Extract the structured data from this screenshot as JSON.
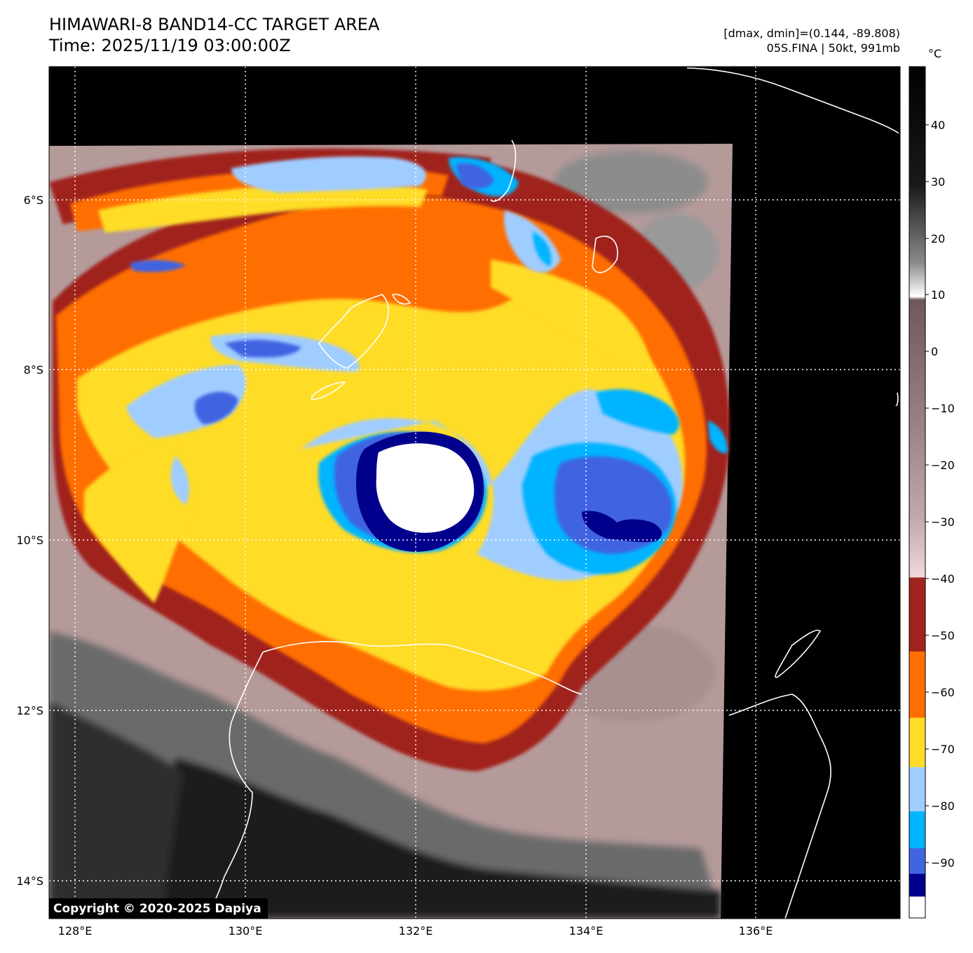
{
  "header": {
    "title_line1": "HIMAWARI-8 BAND14-CC TARGET AREA",
    "title_line2": "Time: 2025/11/19 03:00:00Z",
    "info_line1": "[dmax, dmin]=(0.144, -89.808)",
    "info_line2": "05S.FINA | 50kt, 991mb"
  },
  "colorbar": {
    "unit": "°C",
    "ticks": [
      "40",
      "30",
      "20",
      "10",
      "0",
      "−10",
      "−20",
      "−30",
      "−40",
      "−50",
      "−60",
      "−70",
      "−80",
      "−90"
    ]
  },
  "axes": {
    "lon_labels": [
      "128°E",
      "130°E",
      "132°E",
      "134°E",
      "136°E"
    ],
    "lat_labels": [
      "6°S",
      "8°S",
      "10°S",
      "12°S",
      "14°S"
    ]
  },
  "copyright": "Copyright © 2020-2025 Dapiya",
  "colors": {
    "space": "#000000",
    "coast": "#ffffff",
    "grid": "#ffffff",
    "warm_gray": "#7a7a7a",
    "pink": "#c9a7a7",
    "dark_red": "#a0231e",
    "orange": "#ff6e00",
    "yellow": "#ffdc28",
    "light_blue": "#a0cdff",
    "cyan": "#00b4ff",
    "royal_blue": "#4164e1",
    "navy": "#00008c",
    "white": "#ffffff"
  }
}
